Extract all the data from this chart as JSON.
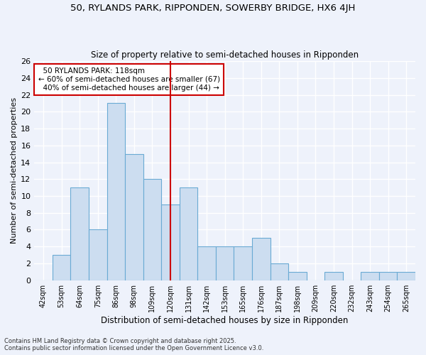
{
  "title": "50, RYLANDS PARK, RIPPONDEN, SOWERBY BRIDGE, HX6 4JH",
  "subtitle": "Size of property relative to semi-detached houses in Ripponden",
  "xlabel": "Distribution of semi-detached houses by size in Ripponden",
  "ylabel": "Number of semi-detached properties",
  "categories": [
    "42sqm",
    "53sqm",
    "64sqm",
    "75sqm",
    "86sqm",
    "98sqm",
    "109sqm",
    "120sqm",
    "131sqm",
    "142sqm",
    "153sqm",
    "165sqm",
    "176sqm",
    "187sqm",
    "198sqm",
    "209sqm",
    "220sqm",
    "232sqm",
    "243sqm",
    "254sqm",
    "265sqm"
  ],
  "values": [
    0,
    3,
    11,
    6,
    21,
    15,
    12,
    9,
    11,
    4,
    4,
    4,
    5,
    2,
    1,
    0,
    1,
    0,
    1,
    1,
    1
  ],
  "bar_color": "#ccddf0",
  "bar_edge_color": "#6aaad4",
  "vline_color": "#cc0000",
  "box_color": "#cc0000",
  "ylim": [
    0,
    26
  ],
  "yticks": [
    0,
    2,
    4,
    6,
    8,
    10,
    12,
    14,
    16,
    18,
    20,
    22,
    24,
    26
  ],
  "background_color": "#eef2fb",
  "grid_color": "#ffffff",
  "pct_smaller": 60,
  "n_smaller": 67,
  "pct_larger": 40,
  "n_larger": 44,
  "footer1": "Contains HM Land Registry data © Crown copyright and database right 2025.",
  "footer2": "Contains public sector information licensed under the Open Government Licence v3.0."
}
